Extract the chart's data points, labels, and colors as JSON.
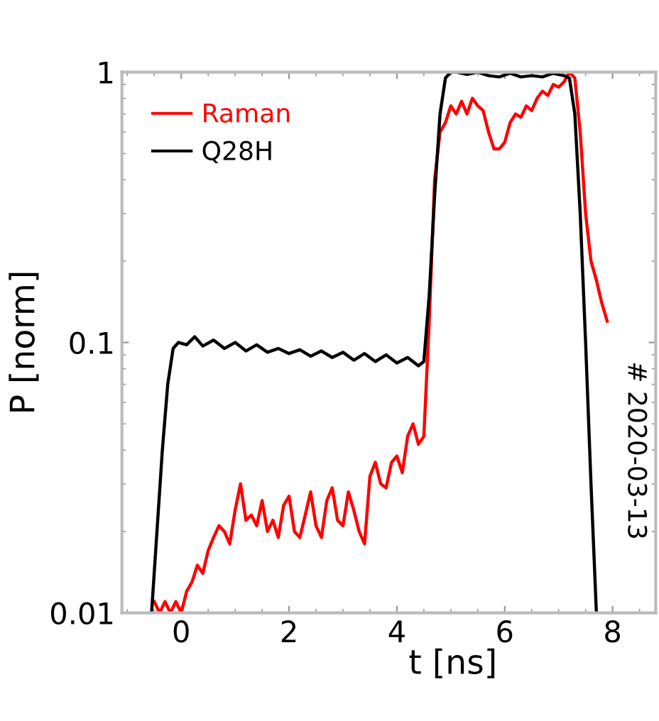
{
  "chart_data": {
    "type": "line",
    "xlabel": "t [ns]",
    "ylabel": "P [norm]",
    "log": "y",
    "xlim": [
      -1.1,
      8.8
    ],
    "ylim": [
      0.01,
      1
    ],
    "xticks": [
      0,
      2,
      4,
      6,
      8
    ],
    "yticks": [
      {
        "value": 0.01,
        "label": "0.01"
      },
      {
        "value": 0.1,
        "label": "0.1"
      },
      {
        "value": 1,
        "label": "1"
      }
    ],
    "legend": "top left",
    "grid": false,
    "marker": "none",
    "line_style": "solid",
    "annotations": [
      "# 2020-03-13"
    ],
    "series": [
      {
        "name": "Raman",
        "color": "#ff0000",
        "x": [
          -0.5,
          -0.4,
          -0.3,
          -0.2,
          -0.1,
          0.0,
          0.1,
          0.2,
          0.3,
          0.4,
          0.5,
          0.6,
          0.7,
          0.8,
          0.9,
          1.0,
          1.1,
          1.2,
          1.3,
          1.4,
          1.5,
          1.6,
          1.7,
          1.8,
          1.9,
          2.0,
          2.1,
          2.2,
          2.3,
          2.4,
          2.5,
          2.6,
          2.7,
          2.8,
          2.9,
          3.0,
          3.1,
          3.2,
          3.3,
          3.4,
          3.5,
          3.6,
          3.7,
          3.8,
          3.9,
          4.0,
          4.1,
          4.2,
          4.3,
          4.4,
          4.5,
          4.6,
          4.7,
          4.8,
          4.9,
          5.0,
          5.1,
          5.2,
          5.3,
          5.4,
          5.5,
          5.6,
          5.7,
          5.8,
          5.9,
          6.0,
          6.1,
          6.2,
          6.3,
          6.4,
          6.5,
          6.6,
          6.7,
          6.8,
          6.9,
          7.0,
          7.1,
          7.2,
          7.3,
          7.4,
          7.5,
          7.6,
          7.7,
          7.8,
          7.9
        ],
        "values": [
          0.011,
          0.01,
          0.011,
          0.01,
          0.011,
          0.01,
          0.012,
          0.013,
          0.015,
          0.014,
          0.017,
          0.019,
          0.021,
          0.02,
          0.018,
          0.024,
          0.03,
          0.022,
          0.023,
          0.021,
          0.026,
          0.02,
          0.022,
          0.019,
          0.025,
          0.027,
          0.02,
          0.019,
          0.023,
          0.028,
          0.021,
          0.019,
          0.026,
          0.029,
          0.022,
          0.021,
          0.028,
          0.024,
          0.02,
          0.018,
          0.032,
          0.036,
          0.03,
          0.029,
          0.036,
          0.038,
          0.033,
          0.045,
          0.05,
          0.042,
          0.045,
          0.12,
          0.4,
          0.6,
          0.65,
          0.75,
          0.7,
          0.78,
          0.7,
          0.8,
          0.75,
          0.72,
          0.6,
          0.52,
          0.52,
          0.55,
          0.65,
          0.7,
          0.68,
          0.75,
          0.72,
          0.8,
          0.85,
          0.82,
          0.9,
          0.88,
          0.92,
          1.0,
          0.95,
          0.6,
          0.3,
          0.2,
          0.17,
          0.14,
          0.12
        ]
      },
      {
        "name": "Q28H",
        "color": "#000000",
        "x": [
          -0.55,
          -0.45,
          -0.35,
          -0.25,
          -0.15,
          -0.05,
          0.1,
          0.25,
          0.4,
          0.6,
          0.8,
          1.0,
          1.2,
          1.4,
          1.6,
          1.8,
          2.0,
          2.2,
          2.4,
          2.6,
          2.8,
          3.0,
          3.2,
          3.4,
          3.6,
          3.8,
          4.0,
          4.2,
          4.4,
          4.5,
          4.6,
          4.7,
          4.8,
          4.9,
          5.0,
          5.1,
          5.3,
          5.5,
          5.7,
          5.9,
          6.1,
          6.3,
          6.5,
          6.7,
          6.9,
          7.1,
          7.2,
          7.3,
          7.4,
          7.5,
          7.6,
          7.7
        ],
        "values": [
          0.01,
          0.02,
          0.04,
          0.07,
          0.095,
          0.1,
          0.098,
          0.105,
          0.097,
          0.102,
          0.095,
          0.1,
          0.093,
          0.098,
          0.092,
          0.095,
          0.091,
          0.094,
          0.089,
          0.093,
          0.088,
          0.092,
          0.086,
          0.091,
          0.085,
          0.09,
          0.084,
          0.088,
          0.082,
          0.085,
          0.15,
          0.35,
          0.7,
          0.95,
          1.0,
          1.0,
          0.98,
          1.0,
          0.97,
          0.96,
          0.99,
          0.96,
          0.97,
          0.96,
          0.99,
          0.97,
          0.95,
          0.7,
          0.3,
          0.1,
          0.03,
          0.01
        ]
      }
    ]
  }
}
